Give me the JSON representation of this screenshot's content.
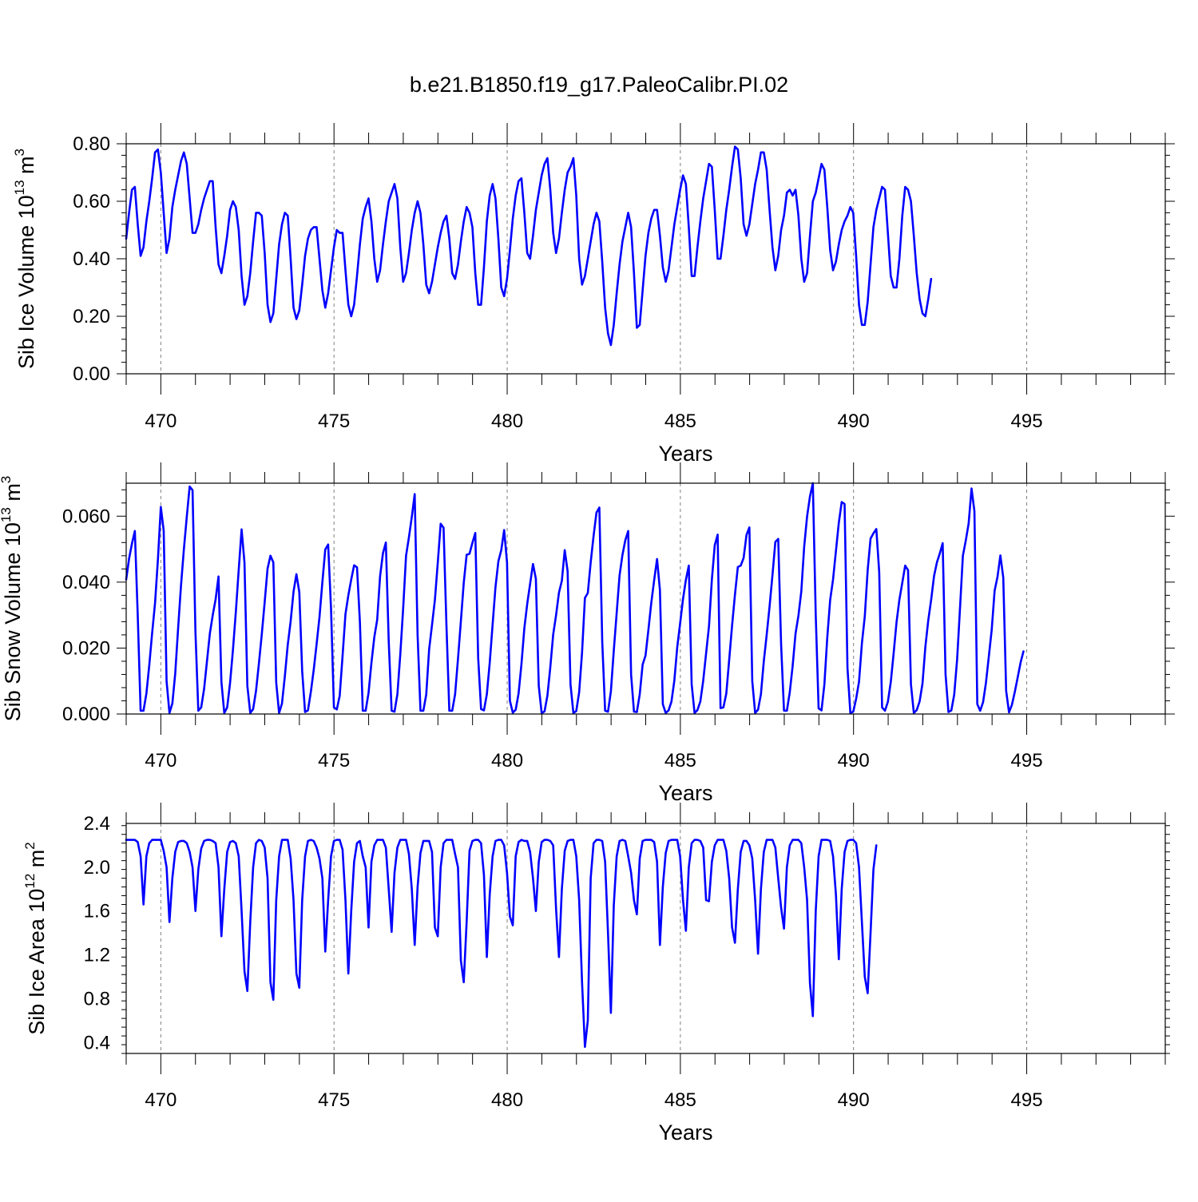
{
  "figure_title": "b.e21.B1850.f19_g17.PaleoCalibr.PI.02",
  "colors": {
    "line": "#0000ff",
    "axes": "#000000",
    "grid": "#7f7f7f"
  },
  "chart_data": [
    {
      "type": "line",
      "title": "b.e21.B1850.f19_g17.PaleoCalibr.PI.02",
      "xlabel": "Years",
      "ylabel_text": "Sib Ice Volume 10",
      "ylabel_exp": "13",
      "ylabel_unit": " m",
      "ylabel_unit_exp": "3",
      "xlim": [
        469.0,
        499.0
      ],
      "ylim": [
        0.0,
        0.8
      ],
      "xticks": [
        470,
        475,
        480,
        485,
        490,
        495
      ],
      "xtick_labels": [
        "470",
        "475",
        "480",
        "485",
        "490",
        "495"
      ],
      "yticks": [
        0.0,
        0.2,
        0.4,
        0.6,
        0.8
      ],
      "ytick_labels": [
        "0.00",
        "0.20",
        "0.40",
        "0.60",
        "0.80"
      ],
      "grid": "vertical dashed at major x ticks",
      "series": [
        {
          "name": "Sib Ice Volume",
          "x_start": 469.0,
          "x_step": 0.0833,
          "values": [
            0.47,
            0.56,
            0.64,
            0.65,
            0.52,
            0.41,
            0.44,
            0.53,
            0.6,
            0.68,
            0.77,
            0.78,
            0.7,
            0.56,
            0.42,
            0.47,
            0.58,
            0.64,
            0.69,
            0.74,
            0.77,
            0.73,
            0.61,
            0.49,
            0.49,
            0.52,
            0.57,
            0.61,
            0.64,
            0.67,
            0.67,
            0.51,
            0.38,
            0.35,
            0.41,
            0.48,
            0.57,
            0.6,
            0.58,
            0.5,
            0.34,
            0.24,
            0.27,
            0.35,
            0.46,
            0.56,
            0.56,
            0.55,
            0.42,
            0.24,
            0.18,
            0.21,
            0.33,
            0.45,
            0.52,
            0.56,
            0.55,
            0.4,
            0.23,
            0.19,
            0.22,
            0.31,
            0.41,
            0.47,
            0.5,
            0.51,
            0.51,
            0.4,
            0.29,
            0.23,
            0.28,
            0.36,
            0.44,
            0.5,
            0.49,
            0.49,
            0.36,
            0.24,
            0.2,
            0.24,
            0.34,
            0.45,
            0.54,
            0.58,
            0.61,
            0.53,
            0.4,
            0.32,
            0.36,
            0.45,
            0.53,
            0.6,
            0.63,
            0.66,
            0.61,
            0.44,
            0.32,
            0.35,
            0.42,
            0.5,
            0.56,
            0.6,
            0.56,
            0.45,
            0.31,
            0.28,
            0.32,
            0.38,
            0.44,
            0.49,
            0.53,
            0.55,
            0.47,
            0.35,
            0.33,
            0.38,
            0.46,
            0.53,
            0.58,
            0.56,
            0.51,
            0.35,
            0.24,
            0.24,
            0.37,
            0.53,
            0.62,
            0.66,
            0.61,
            0.47,
            0.3,
            0.27,
            0.33,
            0.43,
            0.54,
            0.62,
            0.67,
            0.68,
            0.56,
            0.42,
            0.4,
            0.48,
            0.57,
            0.63,
            0.69,
            0.73,
            0.75,
            0.64,
            0.49,
            0.42,
            0.47,
            0.56,
            0.64,
            0.7,
            0.72,
            0.75,
            0.62,
            0.4,
            0.31,
            0.34,
            0.4,
            0.46,
            0.52,
            0.56,
            0.53,
            0.39,
            0.23,
            0.14,
            0.1,
            0.17,
            0.28,
            0.38,
            0.46,
            0.51,
            0.56,
            0.51,
            0.35,
            0.16,
            0.17,
            0.29,
            0.41,
            0.49,
            0.54,
            0.57,
            0.57,
            0.48,
            0.37,
            0.32,
            0.36,
            0.44,
            0.52,
            0.58,
            0.64,
            0.69,
            0.66,
            0.51,
            0.34,
            0.34,
            0.44,
            0.53,
            0.61,
            0.67,
            0.73,
            0.72,
            0.57,
            0.4,
            0.4,
            0.48,
            0.57,
            0.64,
            0.72,
            0.79,
            0.78,
            0.68,
            0.52,
            0.48,
            0.52,
            0.59,
            0.66,
            0.71,
            0.77,
            0.77,
            0.71,
            0.57,
            0.44,
            0.36,
            0.41,
            0.5,
            0.55,
            0.63,
            0.64,
            0.62,
            0.64,
            0.55,
            0.4,
            0.32,
            0.35,
            0.48,
            0.6,
            0.63,
            0.68,
            0.73,
            0.71,
            0.58,
            0.43,
            0.36,
            0.39,
            0.45,
            0.5,
            0.53,
            0.55,
            0.58,
            0.56,
            0.41,
            0.24,
            0.17,
            0.17,
            0.25,
            0.38,
            0.51,
            0.57,
            0.61,
            0.65,
            0.64,
            0.49,
            0.34,
            0.3,
            0.3,
            0.4,
            0.55,
            0.65,
            0.64,
            0.6,
            0.48,
            0.35,
            0.26,
            0.21,
            0.2,
            0.26,
            0.33
          ]
        }
      ]
    },
    {
      "type": "line",
      "title": "",
      "xlabel": "Years",
      "ylabel_text": "Sib Snow Volume 10",
      "ylabel_exp": "13",
      "ylabel_unit": " m",
      "ylabel_unit_exp": "3",
      "xlim": [
        469.0,
        499.0
      ],
      "ylim": [
        0.0,
        0.07
      ],
      "xticks": [
        470,
        475,
        480,
        485,
        490,
        495
      ],
      "xtick_labels": [
        "470",
        "475",
        "480",
        "485",
        "490",
        "495"
      ],
      "yticks": [
        0.0,
        0.02,
        0.04,
        0.06
      ],
      "ytick_labels": [
        "0.000",
        "0.020",
        "0.040",
        "0.060"
      ],
      "grid": "vertical dashed at major x ticks",
      "series": [
        {
          "name": "Sib Snow Volume",
          "x_start": 469.0,
          "x_step": 0.0833,
          "values": [
            0.0408,
            0.0471,
            0.0517,
            0.0555,
            0.03,
            0.001,
            0.001,
            0.0062,
            0.0148,
            0.0246,
            0.0336,
            0.0469,
            0.0628,
            0.0556,
            0.01,
            0.0003,
            0.0032,
            0.0123,
            0.026,
            0.039,
            0.05,
            0.0598,
            0.069,
            0.0679,
            0.025,
            0.001,
            0.002,
            0.0076,
            0.016,
            0.0244,
            0.03,
            0.0348,
            0.0417,
            0.0098,
            0.0003,
            0.002,
            0.0094,
            0.0194,
            0.0309,
            0.0437,
            0.056,
            0.0459,
            0.0085,
            0.0003,
            0.0015,
            0.007,
            0.0153,
            0.0242,
            0.0339,
            0.0441,
            0.048,
            0.046,
            0.0095,
            0.0003,
            0.0032,
            0.0115,
            0.021,
            0.0281,
            0.0371,
            0.0424,
            0.037,
            0.013,
            0.0006,
            0.0011,
            0.0067,
            0.0134,
            0.0212,
            0.0294,
            0.04,
            0.0499,
            0.0514,
            0.032,
            0.002,
            0.0014,
            0.0055,
            0.0176,
            0.0303,
            0.036,
            0.0408,
            0.0451,
            0.0445,
            0.028,
            0.001,
            0.001,
            0.0064,
            0.0155,
            0.0233,
            0.0286,
            0.0418,
            0.0488,
            0.052,
            0.022,
            0.001,
            0.0007,
            0.006,
            0.018,
            0.032,
            0.048,
            0.0536,
            0.0598,
            0.0667,
            0.024,
            0.001,
            0.001,
            0.0059,
            0.0196,
            0.027,
            0.0346,
            0.0459,
            0.0577,
            0.0565,
            0.027,
            0.001,
            0.001,
            0.006,
            0.0167,
            0.0281,
            0.0398,
            0.0483,
            0.0486,
            0.0519,
            0.0549,
            0.017,
            0.0015,
            0.0011,
            0.006,
            0.0155,
            0.0271,
            0.0385,
            0.0463,
            0.0497,
            0.0558,
            0.046,
            0.004,
            0.0004,
            0.0013,
            0.0062,
            0.0151,
            0.026,
            0.0334,
            0.0395,
            0.0455,
            0.041,
            0.0085,
            0.0003,
            0.0008,
            0.0056,
            0.0142,
            0.0241,
            0.03,
            0.0368,
            0.0404,
            0.0497,
            0.0433,
            0.009,
            0.0003,
            0.0009,
            0.0066,
            0.0186,
            0.0352,
            0.0367,
            0.046,
            0.054,
            0.0611,
            0.0626,
            0.022,
            0.001,
            0.0007,
            0.0069,
            0.0192,
            0.0306,
            0.042,
            0.0482,
            0.0527,
            0.0555,
            0.012,
            0.0007,
            0.0006,
            0.006,
            0.015,
            0.0177,
            0.0255,
            0.0337,
            0.0406,
            0.047,
            0.0375,
            0.003,
            0.0003,
            0.0011,
            0.0038,
            0.0102,
            0.0203,
            0.0275,
            0.0349,
            0.0407,
            0.045,
            0.009,
            0.0003,
            0.0012,
            0.0038,
            0.0101,
            0.0184,
            0.0266,
            0.0408,
            0.0512,
            0.0544,
            0.0018,
            0.002,
            0.0062,
            0.0164,
            0.0268,
            0.0362,
            0.0446,
            0.045,
            0.0473,
            0.0543,
            0.0566,
            0.01,
            0.0003,
            0.0013,
            0.006,
            0.016,
            0.024,
            0.0326,
            0.0421,
            0.0522,
            0.0531,
            0.021,
            0.001,
            0.001,
            0.0066,
            0.0146,
            0.0244,
            0.0298,
            0.0372,
            0.0508,
            0.0599,
            0.066,
            0.07,
            0.03,
            0.0017,
            0.0011,
            0.009,
            0.0232,
            0.0346,
            0.0408,
            0.0494,
            0.058,
            0.0643,
            0.0637,
            0.014,
            0.0003,
            0.0007,
            0.0046,
            0.0098,
            0.0214,
            0.0296,
            0.0436,
            0.0532,
            0.0548,
            0.0561,
            0.043,
            0.002,
            0.001,
            0.0037,
            0.0096,
            0.0184,
            0.0278,
            0.0347,
            0.0398,
            0.045,
            0.0436,
            0.009,
            0.0003,
            0.0012,
            0.0038,
            0.0092,
            0.0204,
            0.0284,
            0.0346,
            0.0418,
            0.046,
            0.0487,
            0.0518,
            0.012,
            0.0006,
            0.0011,
            0.0059,
            0.0165,
            0.032,
            0.048,
            0.0526,
            0.0578,
            0.0684,
            0.0615,
            0.003,
            0.001,
            0.0036,
            0.0095,
            0.0175,
            0.0256,
            0.0374,
            0.0416,
            0.0481,
            0.0414,
            0.007,
            0.0005,
            0.0028,
            0.0067,
            0.0111,
            0.0156,
            0.019
          ]
        }
      ]
    },
    {
      "type": "line",
      "title": "",
      "xlabel": "Years",
      "ylabel_text": "Sib Ice Area 10",
      "ylabel_exp": "12",
      "ylabel_unit": " m",
      "ylabel_unit_exp": "2",
      "xlim": [
        469.0,
        499.0
      ],
      "ylim": [
        0.3,
        2.4
      ],
      "xticks": [
        470,
        475,
        480,
        485,
        490,
        495
      ],
      "xtick_labels": [
        "470",
        "475",
        "480",
        "485",
        "490",
        "495"
      ],
      "yticks": [
        0.4,
        0.8,
        1.2,
        1.6,
        2.0,
        2.4
      ],
      "ytick_labels": [
        "0.4",
        "0.8",
        "1.2",
        "1.6",
        "2.0",
        "2.4"
      ],
      "grid": "vertical dashed at major x ticks",
      "series": [
        {
          "name": "Sib Ice Area",
          "x_start": 469.0,
          "x_step": 0.0833,
          "values": [
            2.25,
            2.25,
            2.25,
            2.25,
            2.23,
            2.1,
            1.66,
            2.1,
            2.22,
            2.25,
            2.25,
            2.25,
            2.25,
            2.15,
            2.0,
            1.5,
            1.9,
            2.14,
            2.23,
            2.24,
            2.24,
            2.22,
            2.14,
            2.0,
            1.6,
            1.98,
            2.17,
            2.24,
            2.25,
            2.25,
            2.24,
            2.22,
            2.0,
            1.37,
            1.8,
            2.14,
            2.23,
            2.24,
            2.22,
            2.1,
            1.6,
            1.05,
            0.87,
            1.5,
            2.0,
            2.22,
            2.25,
            2.24,
            2.18,
            1.9,
            0.95,
            0.79,
            1.7,
            2.1,
            2.25,
            2.25,
            2.25,
            2.08,
            1.7,
            1.03,
            0.9,
            1.7,
            2.1,
            2.24,
            2.25,
            2.24,
            2.18,
            2.08,
            1.9,
            1.23,
            1.7,
            2.1,
            2.24,
            2.25,
            2.25,
            2.16,
            1.7,
            1.03,
            1.6,
            2.05,
            2.22,
            2.24,
            2.1,
            2.0,
            1.45,
            2.05,
            2.2,
            2.25,
            2.25,
            2.25,
            2.18,
            1.8,
            1.41,
            1.95,
            2.18,
            2.25,
            2.25,
            2.25,
            2.12,
            1.8,
            1.29,
            1.82,
            2.13,
            2.24,
            2.24,
            2.24,
            2.14,
            1.45,
            1.37,
            2.0,
            2.22,
            2.25,
            2.25,
            2.25,
            2.12,
            2.0,
            1.15,
            0.95,
            1.5,
            2.15,
            2.24,
            2.25,
            2.25,
            2.22,
            1.93,
            1.18,
            1.75,
            2.1,
            2.24,
            2.25,
            2.25,
            2.2,
            1.95,
            1.55,
            1.47,
            2.1,
            2.23,
            2.25,
            2.24,
            2.24,
            2.14,
            1.9,
            1.6,
            2.05,
            2.23,
            2.25,
            2.25,
            2.24,
            2.2,
            1.62,
            1.18,
            1.8,
            2.15,
            2.24,
            2.25,
            2.25,
            2.1,
            1.7,
            0.95,
            0.36,
            0.6,
            1.9,
            2.22,
            2.25,
            2.25,
            2.24,
            2.05,
            1.4,
            0.67,
            1.65,
            2.1,
            2.24,
            2.25,
            2.24,
            2.1,
            1.95,
            1.7,
            1.57,
            2.08,
            2.24,
            2.25,
            2.25,
            2.25,
            2.23,
            2.05,
            1.29,
            1.82,
            2.13,
            2.24,
            2.25,
            2.25,
            2.25,
            2.1,
            1.7,
            1.42,
            2.0,
            2.22,
            2.25,
            2.25,
            2.24,
            2.18,
            1.7,
            1.69,
            2.05,
            2.2,
            2.25,
            2.25,
            2.25,
            2.15,
            1.9,
            1.45,
            1.31,
            1.8,
            2.14,
            2.24,
            2.24,
            2.2,
            2.08,
            1.7,
            1.21,
            1.8,
            2.14,
            2.25,
            2.25,
            2.25,
            2.18,
            1.9,
            1.63,
            1.44,
            2.0,
            2.2,
            2.25,
            2.25,
            2.25,
            2.22,
            2.0,
            1.7,
            0.94,
            0.64,
            1.6,
            2.1,
            2.25,
            2.25,
            2.25,
            2.24,
            2.1,
            1.75,
            1.16,
            1.8,
            2.14,
            2.24,
            2.25,
            2.25,
            2.22,
            2.0,
            1.5,
            1.0,
            0.85,
            1.4,
            1.98,
            2.2
          ]
        }
      ]
    }
  ]
}
